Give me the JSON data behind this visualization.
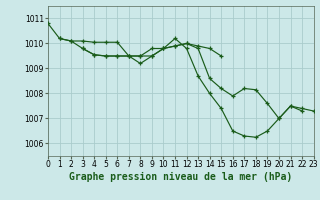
{
  "background_color": "#cce8e8",
  "grid_color": "#aacccc",
  "line_color": "#1a5c1a",
  "title": "Graphe pression niveau de la mer (hPa)",
  "title_fontsize": 7,
  "title_color": "#1a5c1a",
  "ylim": [
    1005.5,
    1011.5
  ],
  "xlim": [
    0,
    23
  ],
  "yticks": [
    1006,
    1007,
    1008,
    1009,
    1010,
    1011
  ],
  "xticks": [
    0,
    1,
    2,
    3,
    4,
    5,
    6,
    7,
    8,
    9,
    10,
    11,
    12,
    13,
    14,
    15,
    16,
    17,
    18,
    19,
    20,
    21,
    22,
    23
  ],
  "tick_labelsize": 5.5,
  "series": [
    [
      1010.8,
      1010.2,
      1010.1,
      1010.1,
      1010.05,
      1010.05,
      1010.05,
      1009.5,
      1009.5,
      1009.8,
      1009.8,
      1010.2,
      1009.8,
      1008.7,
      1008.0,
      1007.4,
      1006.5,
      1006.3,
      1006.25,
      1006.5,
      1007.0,
      1007.5,
      1007.3,
      null
    ],
    [
      null,
      1010.2,
      1010.1,
      1009.8,
      1009.55,
      1009.5,
      1009.5,
      1009.5,
      1009.5,
      1009.5,
      1009.8,
      1009.9,
      1010.0,
      1009.8,
      1008.6,
      1008.2,
      1007.9,
      1008.2,
      1008.15,
      1007.6,
      1007.0,
      1007.5,
      1007.4,
      1007.3
    ],
    [
      null,
      null,
      null,
      1009.8,
      1009.55,
      1009.5,
      1009.5,
      1009.5,
      1009.2,
      1009.5,
      1009.8,
      1009.9,
      1010.0,
      1009.9,
      1009.8,
      1009.5,
      null,
      null,
      null,
      null,
      null,
      null,
      null,
      null
    ]
  ]
}
